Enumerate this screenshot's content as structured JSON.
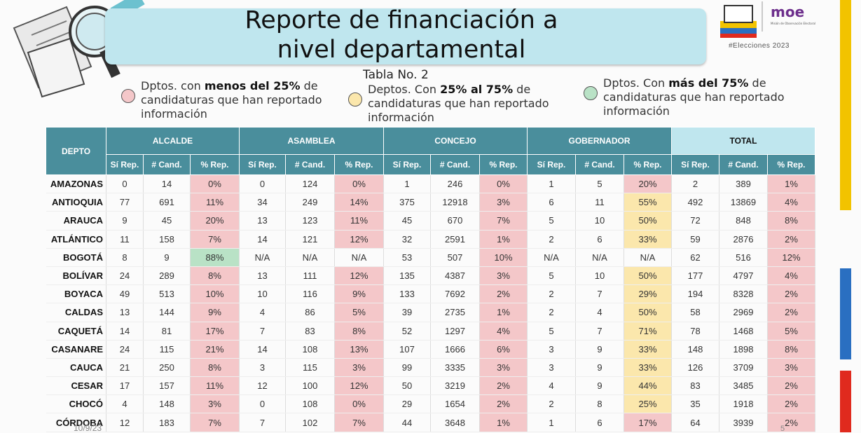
{
  "header": {
    "title_line1": "Reporte de financiación a",
    "title_line2": "nivel departamental",
    "subtitle": "Tabla No. 2",
    "hashtag": "#Elecciones 2023",
    "logo_text": "moe",
    "logo_subtext": "Misión de Observación Electoral"
  },
  "colors": {
    "red": "#f4c7c9",
    "yellow": "#fbe7ac",
    "green": "#b9e2c6",
    "header": "#4a8e9c",
    "total_header": "#bfe6ee"
  },
  "legend": [
    {
      "pre": "Dptos. con ",
      "bold": "menos del 25%",
      "post": " de candidaturas que han reportado información",
      "color": "#f4c7c9"
    },
    {
      "pre": "Deptos. Con ",
      "bold": "25% al 75%",
      "post": " de candidaturas que han reportado información",
      "color": "#fbe7ac"
    },
    {
      "pre": "Dptos. Con ",
      "bold": "más del 75%",
      "post": " de candidaturas que han reportado información",
      "color": "#b9e2c6"
    }
  ],
  "table": {
    "depto_header": "DEPTO",
    "groups": [
      "ALCALDE",
      "ASAMBLEA",
      "CONCEJO",
      "GOBERNADOR",
      "TOTAL"
    ],
    "subcols": [
      "Sí Rep.",
      "# Cand.",
      "% Rep."
    ],
    "rows": [
      {
        "depto": "AMAZONAS",
        "cells": [
          "0",
          "14",
          "0%",
          "0",
          "124",
          "0%",
          "1",
          "246",
          "0%",
          "1",
          "5",
          "20%",
          "2",
          "389",
          "1%"
        ],
        "colors": [
          "r",
          "r",
          "r",
          "r",
          "r"
        ]
      },
      {
        "depto": "ANTIOQUIA",
        "cells": [
          "77",
          "691",
          "11%",
          "34",
          "249",
          "14%",
          "375",
          "12918",
          "3%",
          "6",
          "11",
          "55%",
          "492",
          "13869",
          "4%"
        ],
        "colors": [
          "r",
          "r",
          "r",
          "y",
          "r"
        ]
      },
      {
        "depto": "ARAUCA",
        "cells": [
          "9",
          "45",
          "20%",
          "13",
          "123",
          "11%",
          "45",
          "670",
          "7%",
          "5",
          "10",
          "50%",
          "72",
          "848",
          "8%"
        ],
        "colors": [
          "r",
          "r",
          "r",
          "y",
          "r"
        ]
      },
      {
        "depto": "ATLÁNTICO",
        "cells": [
          "11",
          "158",
          "7%",
          "14",
          "121",
          "12%",
          "32",
          "2591",
          "1%",
          "2",
          "6",
          "33%",
          "59",
          "2876",
          "2%"
        ],
        "colors": [
          "r",
          "r",
          "r",
          "y",
          "r"
        ]
      },
      {
        "depto": "BOGOTÁ",
        "cells": [
          "8",
          "9",
          "88%",
          "N/A",
          "N/A",
          "N/A",
          "53",
          "507",
          "10%",
          "N/A",
          "N/A",
          "N/A",
          "62",
          "516",
          "12%"
        ],
        "colors": [
          "g",
          "",
          "r",
          "",
          "r"
        ]
      },
      {
        "depto": "BOLÍVAR",
        "cells": [
          "24",
          "289",
          "8%",
          "13",
          "111",
          "12%",
          "135",
          "4387",
          "3%",
          "5",
          "10",
          "50%",
          "177",
          "4797",
          "4%"
        ],
        "colors": [
          "r",
          "r",
          "r",
          "y",
          "r"
        ]
      },
      {
        "depto": "BOYACA",
        "cells": [
          "49",
          "513",
          "10%",
          "10",
          "116",
          "9%",
          "133",
          "7692",
          "2%",
          "2",
          "7",
          "29%",
          "194",
          "8328",
          "2%"
        ],
        "colors": [
          "r",
          "r",
          "r",
          "y",
          "r"
        ]
      },
      {
        "depto": "CALDAS",
        "cells": [
          "13",
          "144",
          "9%",
          "4",
          "86",
          "5%",
          "39",
          "2735",
          "1%",
          "2",
          "4",
          "50%",
          "58",
          "2969",
          "2%"
        ],
        "colors": [
          "r",
          "r",
          "r",
          "y",
          "r"
        ]
      },
      {
        "depto": "CAQUETÁ",
        "cells": [
          "14",
          "81",
          "17%",
          "7",
          "83",
          "8%",
          "52",
          "1297",
          "4%",
          "5",
          "7",
          "71%",
          "78",
          "1468",
          "5%"
        ],
        "colors": [
          "r",
          "r",
          "r",
          "y",
          "r"
        ]
      },
      {
        "depto": "CASANARE",
        "cells": [
          "24",
          "115",
          "21%",
          "14",
          "108",
          "13%",
          "107",
          "1666",
          "6%",
          "3",
          "9",
          "33%",
          "148",
          "1898",
          "8%"
        ],
        "colors": [
          "r",
          "r",
          "r",
          "y",
          "r"
        ]
      },
      {
        "depto": "CAUCA",
        "cells": [
          "21",
          "250",
          "8%",
          "3",
          "115",
          "3%",
          "99",
          "3335",
          "3%",
          "3",
          "9",
          "33%",
          "126",
          "3709",
          "3%"
        ],
        "colors": [
          "r",
          "r",
          "r",
          "y",
          "r"
        ]
      },
      {
        "depto": "CESAR",
        "cells": [
          "17",
          "157",
          "11%",
          "12",
          "100",
          "12%",
          "50",
          "3219",
          "2%",
          "4",
          "9",
          "44%",
          "83",
          "3485",
          "2%"
        ],
        "colors": [
          "r",
          "r",
          "r",
          "y",
          "r"
        ]
      },
      {
        "depto": "CHOCÓ",
        "cells": [
          "4",
          "148",
          "3%",
          "0",
          "108",
          "0%",
          "29",
          "1654",
          "2%",
          "2",
          "8",
          "25%",
          "35",
          "1918",
          "2%"
        ],
        "colors": [
          "r",
          "r",
          "r",
          "y",
          "r"
        ]
      },
      {
        "depto": "CÓRDOBA",
        "cells": [
          "12",
          "183",
          "7%",
          "7",
          "102",
          "7%",
          "44",
          "3648",
          "1%",
          "1",
          "6",
          "17%",
          "64",
          "3939",
          "2%"
        ],
        "colors": [
          "r",
          "r",
          "r",
          "r",
          "r"
        ]
      }
    ]
  },
  "footer": {
    "date": "10/9/23",
    "page": "5"
  }
}
